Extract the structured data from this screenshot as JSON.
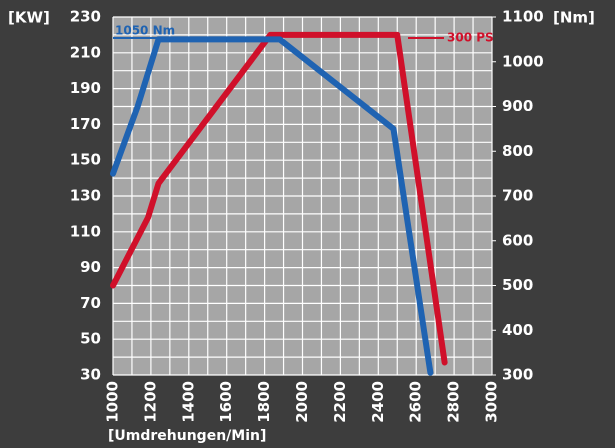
{
  "chart_data": {
    "type": "line",
    "y_label": "[KW]",
    "y2_label": "[Nm]",
    "x_label": "[Umdrehungen/Min]",
    "xlim": [
      1000,
      3000
    ],
    "xticks": [
      1000,
      1200,
      1400,
      1600,
      1800,
      2000,
      2200,
      2400,
      2600,
      2800,
      3000
    ],
    "ylim": [
      30,
      230
    ],
    "yticks": [
      30,
      50,
      70,
      90,
      110,
      130,
      150,
      170,
      190,
      210,
      230
    ],
    "y2lim": [
      300,
      1100
    ],
    "y2ticks": [
      300,
      400,
      500,
      600,
      700,
      800,
      900,
      1000,
      1100
    ],
    "grid": true,
    "series": [
      {
        "name": "300 PS",
        "color": "#d0102a",
        "x": [
          1000,
          1185,
          1240,
          1830,
          2500,
          2750
        ],
        "values": [
          80,
          118,
          137,
          220,
          220,
          37
        ]
      },
      {
        "name": "1050 Nm",
        "color": "#1f63b2",
        "axis": "y2",
        "x": [
          1000,
          1130,
          1240,
          1880,
          2480,
          2675
        ],
        "values": [
          750,
          900,
          1050,
          1050,
          850,
          305
        ]
      }
    ]
  }
}
